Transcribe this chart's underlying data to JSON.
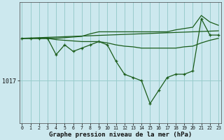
{
  "xlabel": "Graphe pression niveau de la mer (hPa)",
  "background_color": "#cce8ee",
  "grid_color": "#99cccc",
  "line_color": "#1a5c1a",
  "x_ticks": [
    0,
    1,
    2,
    3,
    4,
    5,
    6,
    7,
    8,
    9,
    10,
    11,
    12,
    13,
    14,
    15,
    16,
    17,
    18,
    19,
    20,
    21,
    22,
    23
  ],
  "ytick_label": "1017",
  "ytick_value": 1017,
  "ylim": [
    1010.5,
    1029
  ],
  "xlim": [
    -0.3,
    23.3
  ],
  "series_main": [
    1023.5,
    1023.5,
    1023.5,
    1023.5,
    1021.0,
    1022.5,
    1021.5,
    1022.0,
    1022.5,
    1023.0,
    1022.5,
    1020.0,
    1018.0,
    1017.5,
    1017.0,
    1013.5,
    1015.5,
    1017.5,
    1018.0,
    1018.0,
    1018.5,
    1026.5,
    1024.0,
    1024.0
  ],
  "series_upper": [
    1023.5,
    1023.5,
    1023.5,
    1023.5,
    1023.5,
    1023.6,
    1023.7,
    1023.8,
    1024.2,
    1024.5,
    1024.5,
    1024.5,
    1024.5,
    1024.5,
    1024.5,
    1024.5,
    1024.5,
    1024.5,
    1024.8,
    1025.0,
    1025.2,
    1027.0,
    1026.0,
    1025.5
  ],
  "series_lower": [
    1023.5,
    1023.5,
    1023.5,
    1023.5,
    1023.3,
    1023.2,
    1023.1,
    1023.0,
    1023.0,
    1023.0,
    1022.8,
    1022.5,
    1022.3,
    1022.2,
    1022.0,
    1022.0,
    1022.0,
    1022.0,
    1022.0,
    1022.2,
    1022.3,
    1022.8,
    1023.2,
    1023.5
  ],
  "series_trend": [
    1023.5,
    1023.55,
    1023.6,
    1023.65,
    1023.7,
    1023.75,
    1023.8,
    1023.85,
    1023.9,
    1023.95,
    1024.0,
    1024.05,
    1024.1,
    1024.15,
    1024.2,
    1024.25,
    1024.3,
    1024.35,
    1024.4,
    1024.45,
    1024.5,
    1024.55,
    1024.6,
    1024.65
  ]
}
